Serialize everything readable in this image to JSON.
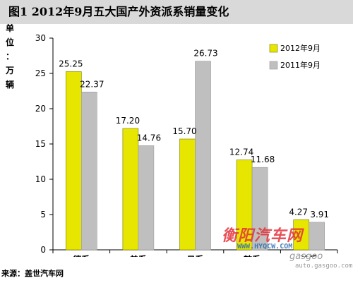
{
  "chart_data": {
    "type": "bar",
    "title": "图1   2012年9月五大国产外资派系销量变化",
    "ylabel": "单位：万辆",
    "categories": [
      "德系",
      "美系",
      "日系",
      "韩系",
      "法系"
    ],
    "series": [
      {
        "name": "2012年9月",
        "values": [
          25.25,
          17.2,
          15.7,
          12.74,
          4.27
        ],
        "labels": [
          "25.25",
          "17.20",
          "15.70",
          "12.74",
          "4.27"
        ],
        "color": "#e6e600"
      },
      {
        "name": "2011年9月",
        "values": [
          22.37,
          14.76,
          26.73,
          11.68,
          3.91
        ],
        "labels": [
          "22.37",
          "14.76",
          "26.73",
          "11.68",
          "3.91"
        ],
        "color": "#bfbfbf"
      }
    ],
    "yticks": [
      "0",
      "5",
      "10",
      "15",
      "20",
      "25",
      "30"
    ],
    "ylim": [
      0,
      30
    ],
    "grid": false,
    "legend": "top-right"
  },
  "source": "来源：盖世汽车网",
  "watermark": {
    "main": "衡阳汽车网",
    "url": "WWW.HYQCW.COM",
    "sub": "gasgoo",
    "url2": "auto.gasgoo.com"
  }
}
